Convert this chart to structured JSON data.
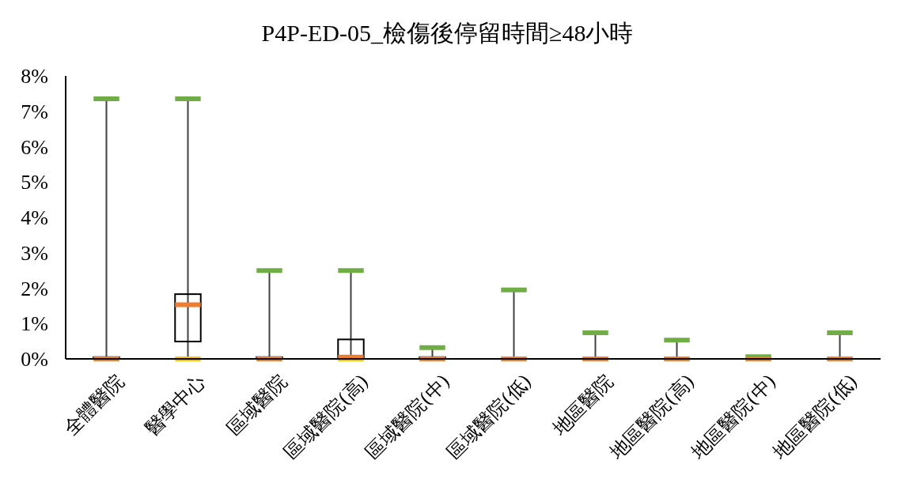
{
  "chart_data": {
    "type": "box",
    "title": "P4P-ED-05_檢傷後停留時間≥48小時",
    "categories": [
      "全體醫院",
      "醫學中心",
      "區域醫院",
      "區域醫院(高)",
      "區域醫院(中)",
      "區域醫院(低)",
      "地區醫院",
      "地區醫院(高)",
      "地區醫院(中)",
      "地區醫院(低)"
    ],
    "boxes": [
      {
        "low": 0,
        "q1": 0,
        "median": 0,
        "q3": 0.05,
        "high": 7.35
      },
      {
        "low": 0,
        "q1": 0.49,
        "median": 1.53,
        "q3": 1.83,
        "high": 7.35
      },
      {
        "low": 0,
        "q1": 0,
        "median": 0,
        "q3": 0.05,
        "high": 2.5
      },
      {
        "low": 0,
        "q1": 0,
        "median": 0.05,
        "q3": 0.55,
        "high": 2.5
      },
      {
        "low": 0,
        "q1": 0,
        "median": 0,
        "q3": 0.05,
        "high": 0.32
      },
      {
        "low": 0,
        "q1": 0,
        "median": 0,
        "q3": 0,
        "high": 1.95
      },
      {
        "low": 0,
        "q1": 0,
        "median": 0,
        "q3": 0,
        "high": 0.74
      },
      {
        "low": 0,
        "q1": 0,
        "median": 0,
        "q3": 0,
        "high": 0.53
      },
      {
        "low": 0,
        "q1": 0,
        "median": 0,
        "q3": 0,
        "high": 0.06
      },
      {
        "low": 0,
        "q1": 0,
        "median": 0,
        "q3": 0,
        "high": 0.74
      }
    ],
    "ylim": [
      0,
      8
    ],
    "yticks": [
      {
        "value": 0,
        "label": "0%"
      },
      {
        "value": 1,
        "label": "1%"
      },
      {
        "value": 2,
        "label": "2%"
      },
      {
        "value": 3,
        "label": "3%"
      },
      {
        "value": 4,
        "label": "4%"
      },
      {
        "value": 5,
        "label": "5%"
      },
      {
        "value": 6,
        "label": "6%"
      },
      {
        "value": 7,
        "label": "7%"
      },
      {
        "value": 8,
        "label": "8%"
      }
    ],
    "grid": false
  }
}
